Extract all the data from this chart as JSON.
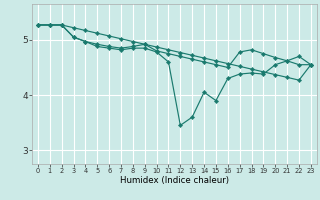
{
  "title": "",
  "xlabel": "Humidex (Indice chaleur)",
  "bg_color": "#cceae7",
  "line_color": "#1a7a6e",
  "grid_color": "#ffffff",
  "x_ticks": [
    0,
    1,
    2,
    3,
    4,
    5,
    6,
    7,
    8,
    9,
    10,
    11,
    12,
    13,
    14,
    15,
    16,
    17,
    18,
    19,
    20,
    21,
    22,
    23
  ],
  "y_ticks": [
    3,
    4,
    5
  ],
  "ylim": [
    2.75,
    5.65
  ],
  "xlim": [
    -0.5,
    23.5
  ],
  "series1": [
    5.27,
    5.27,
    5.27,
    5.22,
    5.17,
    5.12,
    5.07,
    5.02,
    4.97,
    4.92,
    4.87,
    4.82,
    4.77,
    4.72,
    4.67,
    4.62,
    4.57,
    4.52,
    4.47,
    4.42,
    4.37,
    4.32,
    4.27,
    4.55
  ],
  "series2": [
    5.27,
    5.27,
    5.27,
    5.05,
    4.97,
    4.92,
    4.88,
    4.85,
    4.88,
    4.92,
    4.8,
    4.75,
    4.7,
    4.65,
    4.6,
    4.55,
    4.5,
    4.78,
    4.82,
    4.75,
    4.68,
    4.62,
    4.7,
    4.55
  ],
  "series3": [
    5.27,
    5.27,
    5.27,
    5.05,
    4.97,
    4.88,
    4.85,
    4.82,
    4.85,
    4.85,
    4.78,
    4.6,
    3.45,
    3.6,
    4.05,
    3.9,
    4.3,
    4.38,
    4.4,
    4.38,
    4.55,
    4.62,
    4.55,
    4.55
  ]
}
